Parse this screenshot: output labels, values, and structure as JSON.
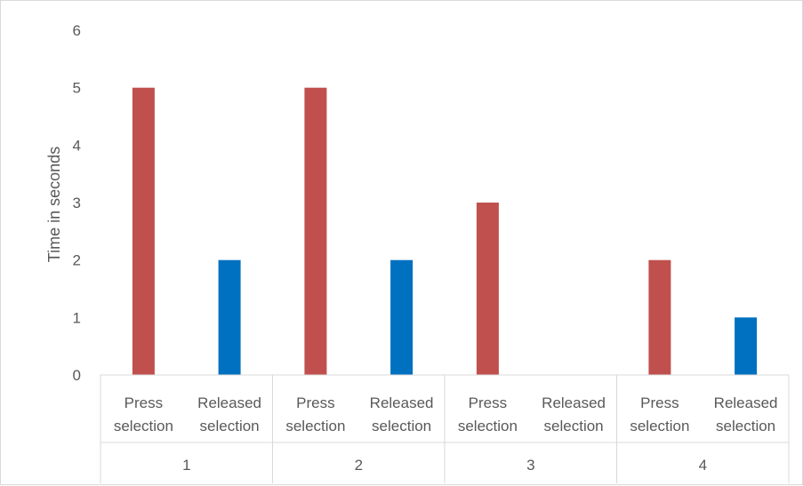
{
  "chart_data": {
    "type": "bar",
    "title": "",
    "xlabel": "",
    "ylabel": "Time in seconds",
    "ylim": [
      0,
      6
    ],
    "yticks": [
      0,
      1,
      2,
      3,
      4,
      5,
      6
    ],
    "grid": false,
    "groups": [
      "1",
      "2",
      "3",
      "4"
    ],
    "subcategories": [
      [
        "Press",
        "selection"
      ],
      [
        "Released",
        "selection"
      ]
    ],
    "bars": [
      {
        "group": "1",
        "subcategory": "Press selection",
        "value": 5,
        "color": "#c0504d"
      },
      {
        "group": "1",
        "subcategory": "Released selection",
        "value": 2,
        "color": "#0070c0"
      },
      {
        "group": "2",
        "subcategory": "Press selection",
        "value": 5,
        "color": "#c0504d"
      },
      {
        "group": "2",
        "subcategory": "Released selection",
        "value": 2,
        "color": "#0070c0"
      },
      {
        "group": "3",
        "subcategory": "Press selection",
        "value": 3,
        "color": "#c0504d"
      },
      {
        "group": "3",
        "subcategory": "Released selection",
        "value": 0,
        "color": "#0070c0"
      },
      {
        "group": "4",
        "subcategory": "Press selection",
        "value": 2,
        "color": "#c0504d"
      },
      {
        "group": "4",
        "subcategory": "Released selection",
        "value": 1,
        "color": "#0070c0"
      }
    ]
  }
}
